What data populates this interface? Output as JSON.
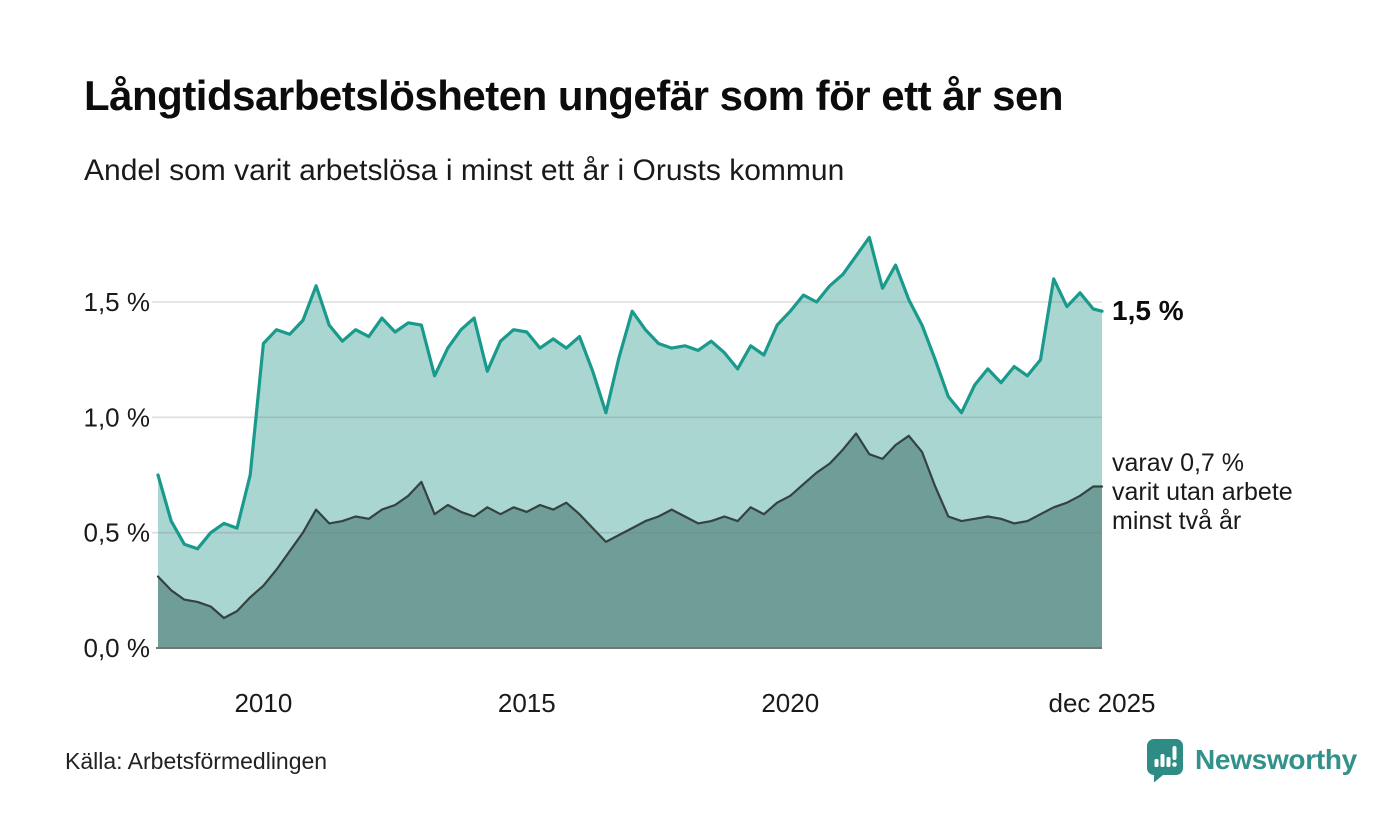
{
  "header": {
    "title": "Långtidsarbetslösheten ungefär som för ett år sen",
    "subtitle": "Andel som varit arbetslösa i minst ett år i Orusts kommun"
  },
  "annotations": {
    "latest_total": "1,5 %",
    "two_year_note": "varav 0,7 %\nvarit utan arbete\nminst två år"
  },
  "footer": {
    "source": "Källa: Arbetsförmedlingen",
    "brand_name": "Newsworthy"
  },
  "colors": {
    "total_line": "#1a9a8d",
    "total_fill": "#a9d6d0",
    "two_year_line": "#35423f",
    "two_year_fill": "#6f9e98",
    "gridline": "rgba(120,120,120,0.25)",
    "baseline": "#757575",
    "brand_teal": "#33918c",
    "logo_bubble": "#2e8c84"
  },
  "chart_data": {
    "type": "area",
    "title": "Andel som varit arbetslösa i minst ett år i Orusts kommun",
    "x_unit": "months since Jan 2008, monthly series ending Dec 2025",
    "ylim": [
      0,
      1.81
    ],
    "grid": "horizontal only",
    "x_months": [
      0,
      3,
      6,
      9,
      12,
      15,
      18,
      21,
      24,
      27,
      30,
      33,
      36,
      39,
      42,
      45,
      48,
      51,
      54,
      57,
      60,
      63,
      66,
      69,
      72,
      75,
      78,
      81,
      84,
      87,
      90,
      93,
      96,
      99,
      102,
      105,
      108,
      111,
      114,
      117,
      120,
      123,
      126,
      129,
      132,
      135,
      138,
      141,
      144,
      147,
      150,
      153,
      156,
      159,
      162,
      165,
      168,
      171,
      174,
      177,
      180,
      183,
      186,
      189,
      192,
      195,
      198,
      201,
      204,
      207,
      210,
      213,
      215
    ],
    "yticks": [
      {
        "label": "0,0 %",
        "value": 0
      },
      {
        "label": "0,5 %",
        "value": 0.5
      },
      {
        "label": "1,0 %",
        "value": 1.0
      },
      {
        "label": "1,5 %",
        "value": 1.5
      }
    ],
    "xticks": [
      {
        "label": "2010",
        "month": 24
      },
      {
        "label": "2015",
        "month": 84
      },
      {
        "label": "2020",
        "month": 144
      },
      {
        "label": "dec 2025",
        "month": 215
      }
    ],
    "series": [
      {
        "name": "Andel arbetslösa minst ett år (totalt)",
        "end_label": "1,5 %",
        "values": [
          0.75,
          0.55,
          0.45,
          0.43,
          0.5,
          0.54,
          0.52,
          0.75,
          1.32,
          1.38,
          1.36,
          1.42,
          1.57,
          1.4,
          1.33,
          1.38,
          1.35,
          1.43,
          1.37,
          1.41,
          1.4,
          1.18,
          1.3,
          1.38,
          1.43,
          1.2,
          1.33,
          1.38,
          1.37,
          1.3,
          1.34,
          1.3,
          1.35,
          1.2,
          1.02,
          1.26,
          1.46,
          1.38,
          1.32,
          1.3,
          1.31,
          1.29,
          1.33,
          1.28,
          1.21,
          1.31,
          1.27,
          1.4,
          1.46,
          1.53,
          1.5,
          1.57,
          1.62,
          1.7,
          1.78,
          1.56,
          1.66,
          1.51,
          1.4,
          1.25,
          1.09,
          1.02,
          1.14,
          1.21,
          1.15,
          1.22,
          1.18,
          1.25,
          1.6,
          1.48,
          1.54,
          1.47,
          1.46
        ]
      },
      {
        "name": "varav utan arbete minst två år",
        "end_label": "varav 0,7 %",
        "values": [
          0.31,
          0.25,
          0.21,
          0.2,
          0.18,
          0.13,
          0.16,
          0.22,
          0.27,
          0.34,
          0.42,
          0.5,
          0.6,
          0.54,
          0.55,
          0.57,
          0.56,
          0.6,
          0.62,
          0.66,
          0.72,
          0.58,
          0.62,
          0.59,
          0.57,
          0.61,
          0.58,
          0.61,
          0.59,
          0.62,
          0.6,
          0.63,
          0.58,
          0.52,
          0.46,
          0.49,
          0.52,
          0.55,
          0.57,
          0.6,
          0.57,
          0.54,
          0.55,
          0.57,
          0.55,
          0.61,
          0.58,
          0.63,
          0.66,
          0.71,
          0.76,
          0.8,
          0.86,
          0.93,
          0.84,
          0.82,
          0.88,
          0.92,
          0.85,
          0.7,
          0.57,
          0.55,
          0.56,
          0.57,
          0.56,
          0.54,
          0.55,
          0.58,
          0.61,
          0.63,
          0.66,
          0.7,
          0.7
        ]
      }
    ]
  }
}
